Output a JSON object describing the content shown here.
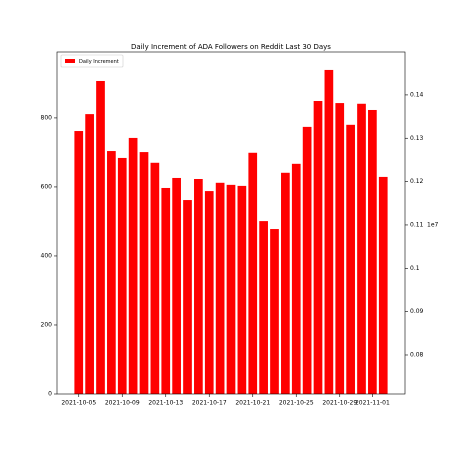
{
  "chart_data": {
    "type": "bar",
    "title": "Daily Increment of ADA Followers on Reddit Last 30 Days",
    "x": [
      "2021-10-05",
      "2021-10-06",
      "2021-10-07",
      "2021-10-08",
      "2021-10-09",
      "2021-10-10",
      "2021-10-11",
      "2021-10-12",
      "2021-10-13",
      "2021-10-14",
      "2021-10-15",
      "2021-10-16",
      "2021-10-17",
      "2021-10-18",
      "2021-10-19",
      "2021-10-20",
      "2021-10-21",
      "2021-10-22",
      "2021-10-23",
      "2021-10-24",
      "2021-10-25",
      "2021-10-26",
      "2021-10-27",
      "2021-10-28",
      "2021-10-29",
      "2021-10-30",
      "2021-10-31",
      "2021-11-01",
      "2021-11-02"
    ],
    "series": [
      {
        "name": "Daily Increment",
        "color": "#ff0000",
        "values": [
          762,
          811,
          907,
          704,
          684,
          742,
          701,
          670,
          597,
          626,
          562,
          623,
          588,
          612,
          606,
          603,
          699,
          501,
          478,
          641,
          667,
          774,
          849,
          939,
          843,
          780,
          841,
          823,
          629
        ]
      }
    ],
    "xlim": [
      "2021-10-03",
      "2021-11-04"
    ],
    "xticks": [
      "2021-10-05",
      "2021-10-09",
      "2021-10-13",
      "2021-10-17",
      "2021-10-21",
      "2021-10-25",
      "2021-10-29",
      "2021-11-01"
    ],
    "ylim": [
      0,
      991
    ],
    "yticks": [
      0,
      200,
      400,
      600,
      800
    ],
    "y2lim": [
      0.071,
      0.1499
    ],
    "y2ticks": [
      0.08,
      0.09,
      0.1,
      0.11,
      0.12,
      0.13,
      0.14
    ],
    "y2_offset": "1e7",
    "legend": "upper left"
  }
}
